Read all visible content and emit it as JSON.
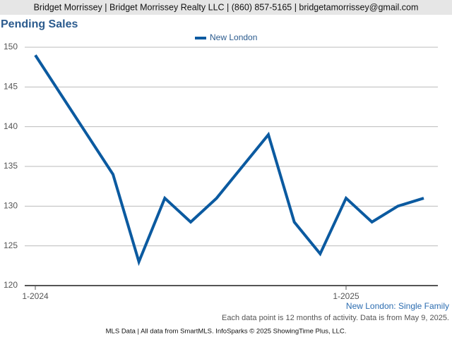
{
  "header": {
    "contact": "Bridget Morrissey | Bridget Morrissey Realty LLC | (860) 857-5165 | bridgetamorrissey@gmail.com"
  },
  "chart_data": {
    "type": "line",
    "title": "Pending Sales",
    "categories": [
      "1-2024",
      null,
      null,
      null,
      null,
      null,
      null,
      null,
      null,
      null,
      null,
      null,
      "1-2025",
      null,
      null,
      null
    ],
    "series": [
      {
        "name": "New London",
        "color": "#0b5aa0",
        "values": [
          149,
          144,
          139,
          134,
          123,
          131,
          128,
          131,
          135,
          139,
          128,
          124,
          131,
          128,
          130,
          131
        ]
      }
    ],
    "ylim": [
      120,
      150
    ],
    "yticks": [
      120,
      125,
      130,
      135,
      140,
      145,
      150
    ],
    "grid": true,
    "legend": "top"
  },
  "notes": {
    "subtitle": "New London: Single Family",
    "data_note": "Each data point is 12 months of activity. Data is from May 9, 2025.",
    "footer": "MLS Data | All data from SmartMLS. InfoSparks © 2025 ShowingTime Plus, LLC."
  }
}
